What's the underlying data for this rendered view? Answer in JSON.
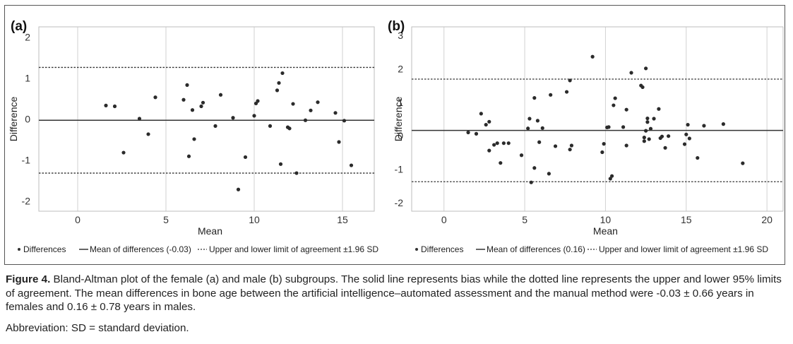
{
  "figure": {
    "caption_label": "Figure 4.",
    "caption_text": " Bland-Altman plot of the female (a) and male (b) subgroups. The solid line represents bias while the dotted line represents the upper and lower 95% limits of agreement. The mean differences in bone age between the artificial intelligence–automated assessment and the manual method were -0.03 ± 0.66 years in females and 0.16 ± 0.78 years in males.",
    "abbreviation": "Abbreviation: SD =  standard deviation."
  },
  "chart_data": [
    {
      "type": "scatter",
      "panel_label": "(a)",
      "xlabel": "Mean",
      "ylabel": "Difference",
      "xlim": [
        -2.2,
        16.8
      ],
      "ylim": [
        -2.25,
        2.25
      ],
      "xticks": [
        0,
        5,
        10,
        15
      ],
      "yticks": [
        -2,
        -1,
        0,
        1,
        2
      ],
      "grid": true,
      "mean_diff": -0.03,
      "upper_loa": 1.26,
      "lower_loa": -1.32,
      "legend": {
        "differences": "Differences",
        "mean": "Mean of differences (-0.03)",
        "limits": "Upper and lower limit of agreement ±1.96 SD"
      },
      "x": [
        1.6,
        2.1,
        2.6,
        3.5,
        4.0,
        4.4,
        6.0,
        6.2,
        6.3,
        6.5,
        6.6,
        7.0,
        7.1,
        7.8,
        8.1,
        8.8,
        9.1,
        9.5,
        10.0,
        10.1,
        10.2,
        10.9,
        11.3,
        11.4,
        11.5,
        11.6,
        11.9,
        12.0,
        12.2,
        12.4,
        12.9,
        13.2,
        13.6,
        14.6,
        14.8,
        15.1,
        15.5
      ],
      "y": [
        0.33,
        0.31,
        -0.82,
        0.01,
        -0.37,
        0.53,
        0.47,
        0.83,
        -0.91,
        0.22,
        -0.49,
        0.31,
        0.4,
        -0.17,
        0.59,
        0.03,
        -1.72,
        -0.93,
        0.08,
        0.38,
        0.44,
        -0.17,
        0.7,
        0.88,
        -1.1,
        1.12,
        -0.2,
        -0.23,
        0.37,
        -1.32,
        -0.03,
        0.21,
        0.41,
        0.15,
        -0.56,
        -0.04,
        -1.13
      ]
    },
    {
      "type": "scatter",
      "panel_label": "(b)",
      "xlabel": "Mean",
      "ylabel": "Difference",
      "xlim": [
        -2.0,
        21.0
      ],
      "ylim": [
        -2.25,
        3.25
      ],
      "xticks": [
        0,
        5,
        10,
        15,
        20
      ],
      "yticks": [
        -2,
        -1,
        0,
        1,
        2,
        3
      ],
      "grid": true,
      "mean_diff": 0.16,
      "upper_loa": 1.69,
      "lower_loa": -1.37,
      "legend": {
        "differences": "Differences",
        "mean": "Mean of differences (0.16)",
        "limits": "Upper and lower limit of agreement ±1.96 SD"
      },
      "x": [
        1.5,
        2.0,
        2.3,
        2.6,
        2.8,
        2.8,
        3.1,
        3.3,
        3.5,
        3.7,
        4.0,
        4.8,
        5.2,
        5.3,
        5.4,
        5.6,
        5.6,
        5.8,
        5.9,
        6.1,
        6.5,
        6.6,
        6.9,
        7.6,
        7.8,
        7.8,
        7.9,
        9.2,
        9.8,
        9.9,
        10.1,
        10.2,
        10.3,
        10.4,
        10.5,
        10.6,
        11.1,
        11.3,
        11.3,
        11.6,
        12.2,
        12.3,
        12.4,
        12.4,
        12.5,
        12.5,
        12.6,
        12.6,
        12.7,
        12.8,
        13.0,
        13.3,
        13.4,
        13.5,
        13.7,
        13.9,
        14.9,
        15.0,
        15.1,
        15.2,
        15.7,
        16.1,
        17.3,
        18.5
      ],
      "y": [
        0.1,
        0.06,
        0.66,
        0.33,
        -0.44,
        0.42,
        -0.27,
        -0.22,
        -0.81,
        -0.22,
        -0.22,
        -0.58,
        0.22,
        0.51,
        -1.39,
        -0.96,
        1.13,
        0.45,
        -0.19,
        0.23,
        -1.13,
        1.22,
        -0.31,
        1.31,
        -0.41,
        1.65,
        -0.29,
        2.36,
        -0.49,
        -0.24,
        0.25,
        0.26,
        -1.28,
        -1.2,
        0.91,
        1.12,
        0.26,
        -0.29,
        0.78,
        1.88,
        1.5,
        1.45,
        -0.16,
        -0.05,
        2.01,
        0.15,
        0.41,
        0.52,
        -0.1,
        0.21,
        0.51,
        0.8,
        -0.07,
        -0.02,
        -0.36,
        -0.01,
        -0.25,
        0.04,
        0.33,
        -0.08,
        -0.66,
        0.3,
        0.35,
        -0.82
      ]
    }
  ]
}
